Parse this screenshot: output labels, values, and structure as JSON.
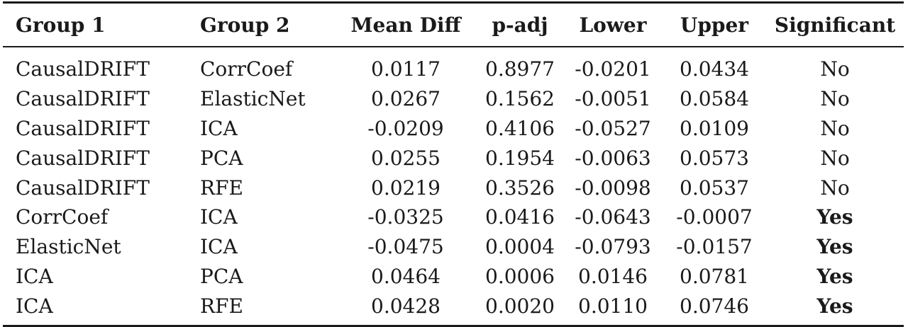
{
  "table": {
    "headers": [
      "Group 1",
      "Group 2",
      "Mean Diff",
      "p-adj",
      "Lower",
      "Upper",
      "Significant"
    ],
    "rows": [
      [
        "CausalDRIFT",
        "CorrCoef",
        "0.0117",
        "0.8977",
        "-0.0201",
        "0.0434",
        "No"
      ],
      [
        "CausalDRIFT",
        "ElasticNet",
        "0.0267",
        "0.1562",
        "-0.0051",
        "0.0584",
        "No"
      ],
      [
        "CausalDRIFT",
        "ICA",
        "-0.0209",
        "0.4106",
        "-0.0527",
        "0.0109",
        "No"
      ],
      [
        "CausalDRIFT",
        "PCA",
        "0.0255",
        "0.1954",
        "-0.0063",
        "0.0573",
        "No"
      ],
      [
        "CausalDRIFT",
        "RFE",
        "0.0219",
        "0.3526",
        "-0.0098",
        "0.0537",
        "No"
      ],
      [
        "CorrCoef",
        "ICA",
        "-0.0325",
        "0.0416",
        "-0.0643",
        "-0.0007",
        "Yes"
      ],
      [
        "ElasticNet",
        "ICA",
        "-0.0475",
        "0.0004",
        "-0.0793",
        "-0.0157",
        "Yes"
      ],
      [
        "ICA",
        "PCA",
        "0.0464",
        "0.0006",
        "0.0146",
        "0.0781",
        "Yes"
      ],
      [
        "ICA",
        "RFE",
        "0.0428",
        "0.0020",
        "0.0110",
        "0.0746",
        "Yes"
      ]
    ]
  }
}
